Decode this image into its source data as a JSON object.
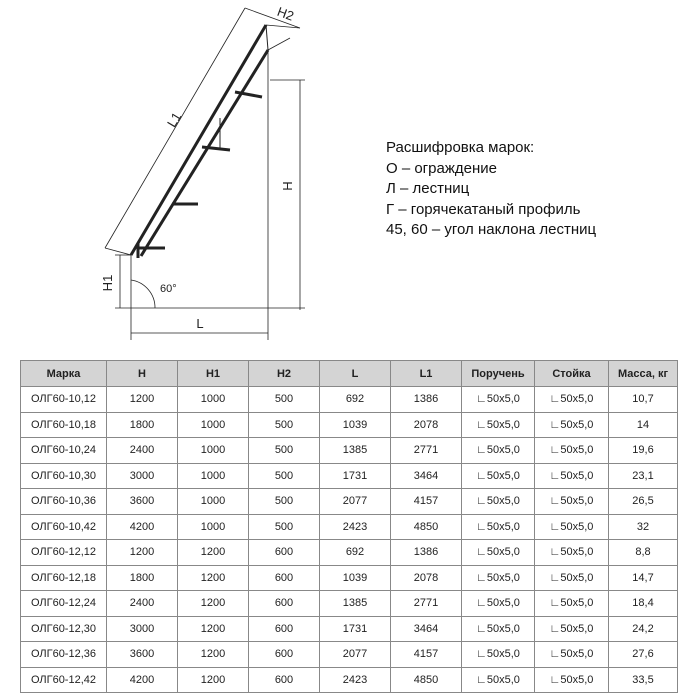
{
  "diagram": {
    "labels": {
      "h2": "H2",
      "l1": "L1",
      "h": "H",
      "h1": "H1",
      "angle": "60°",
      "l": "L"
    }
  },
  "legend": {
    "title": "Расшифровка марок:",
    "items": [
      "О – ограждение",
      "Л – лестниц",
      "Г – горячекатаный профиль",
      "45, 60 – угол наклона лестниц"
    ]
  },
  "table": {
    "headers": [
      "Марка",
      "H",
      "H1",
      "H2",
      "L",
      "L1",
      "Поручень",
      "Стойка",
      "Масса, кг"
    ],
    "rows": [
      [
        "ОЛГ60-10,12",
        "1200",
        "1000",
        "500",
        "692",
        "1386",
        "∟50x5,0",
        "∟50x5,0",
        "10,7"
      ],
      [
        "ОЛГ60-10,18",
        "1800",
        "1000",
        "500",
        "1039",
        "2078",
        "∟50x5,0",
        "∟50x5,0",
        "14"
      ],
      [
        "ОЛГ60-10,24",
        "2400",
        "1000",
        "500",
        "1385",
        "2771",
        "∟50x5,0",
        "∟50x5,0",
        "19,6"
      ],
      [
        "ОЛГ60-10,30",
        "3000",
        "1000",
        "500",
        "1731",
        "3464",
        "∟50x5,0",
        "∟50x5,0",
        "23,1"
      ],
      [
        "ОЛГ60-10,36",
        "3600",
        "1000",
        "500",
        "2077",
        "4157",
        "∟50x5,0",
        "∟50x5,0",
        "26,5"
      ],
      [
        "ОЛГ60-10,42",
        "4200",
        "1000",
        "500",
        "2423",
        "4850",
        "∟50x5,0",
        "∟50x5,0",
        "32"
      ],
      [
        "ОЛГ60-12,12",
        "1200",
        "1200",
        "600",
        "692",
        "1386",
        "∟50x5,0",
        "∟50x5,0",
        "8,8"
      ],
      [
        "ОЛГ60-12,18",
        "1800",
        "1200",
        "600",
        "1039",
        "2078",
        "∟50x5,0",
        "∟50x5,0",
        "14,7"
      ],
      [
        "ОЛГ60-12,24",
        "2400",
        "1200",
        "600",
        "1385",
        "2771",
        "∟50x5,0",
        "∟50x5,0",
        "18,4"
      ],
      [
        "ОЛГ60-12,30",
        "3000",
        "1200",
        "600",
        "1731",
        "3464",
        "∟50x5,0",
        "∟50x5,0",
        "24,2"
      ],
      [
        "ОЛГ60-12,36",
        "3600",
        "1200",
        "600",
        "2077",
        "4157",
        "∟50x5,0",
        "∟50x5,0",
        "27,6"
      ],
      [
        "ОЛГ60-12,42",
        "4200",
        "1200",
        "600",
        "2423",
        "4850",
        "∟50x5,0",
        "∟50x5,0",
        "33,5"
      ]
    ]
  }
}
